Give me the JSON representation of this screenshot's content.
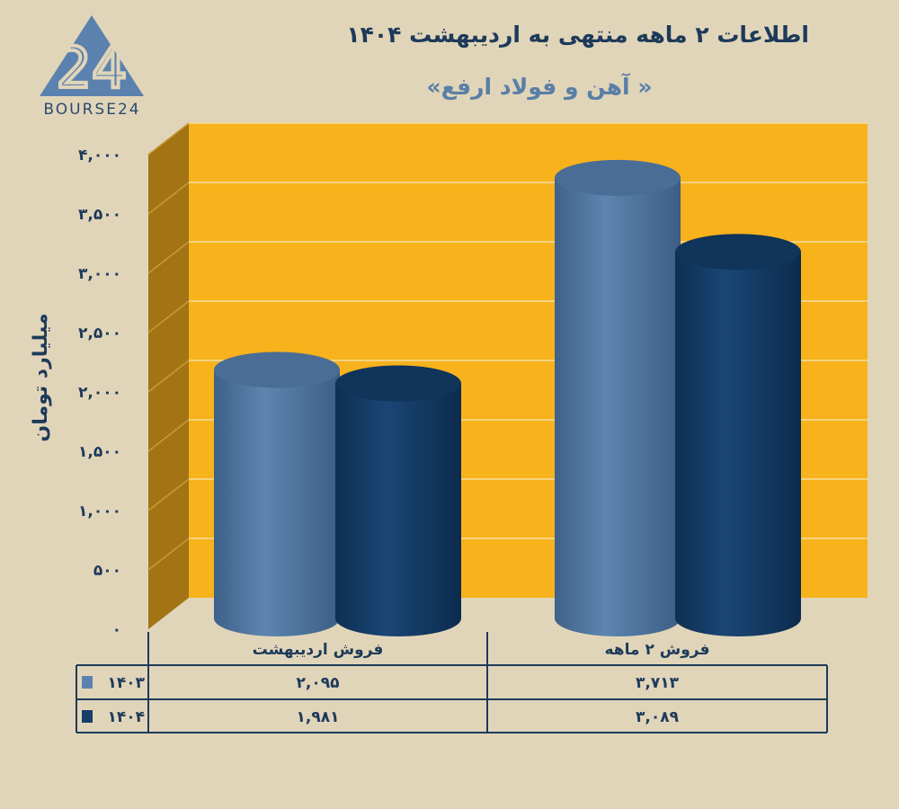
{
  "logo": {
    "text": "BOURSE24",
    "mark": "24"
  },
  "chart_data": {
    "type": "bar",
    "title": "اطلاعات ۲ ماهه منتهی به اردیبهشت ۱۴۰۴",
    "subtitle": "« آهن و فولاد ارفع»",
    "ylabel": "میلیارد تومان",
    "ylim": [
      0,
      4000
    ],
    "yticks": [
      0,
      500,
      1000,
      1500,
      2000,
      2500,
      3000,
      3500,
      4000
    ],
    "ytick_labels": [
      "۰",
      "۵۰۰",
      "۱,۰۰۰",
      "۱,۵۰۰",
      "۲,۰۰۰",
      "۲,۵۰۰",
      "۳,۰۰۰",
      "۳,۵۰۰",
      "۴,۰۰۰"
    ],
    "grid": true,
    "categories": [
      "فروش اردیبهشت",
      "فروش ۲ ماهه"
    ],
    "series": [
      {
        "name": "۱۴۰۳",
        "values": [
          2095,
          3713
        ],
        "labels": [
          "۲,۰۹۵",
          "۳,۷۱۳"
        ],
        "color": "#5b82ae"
      },
      {
        "name": "۱۴۰۴",
        "values": [
          1981,
          3089
        ],
        "labels": [
          "۱,۹۸۱",
          "۳,۰۸۹"
        ],
        "color": "#153e69"
      }
    ],
    "legend": "data-table-below",
    "wall_color": "#f7b21c",
    "side_wall_color": "#a27414"
  }
}
